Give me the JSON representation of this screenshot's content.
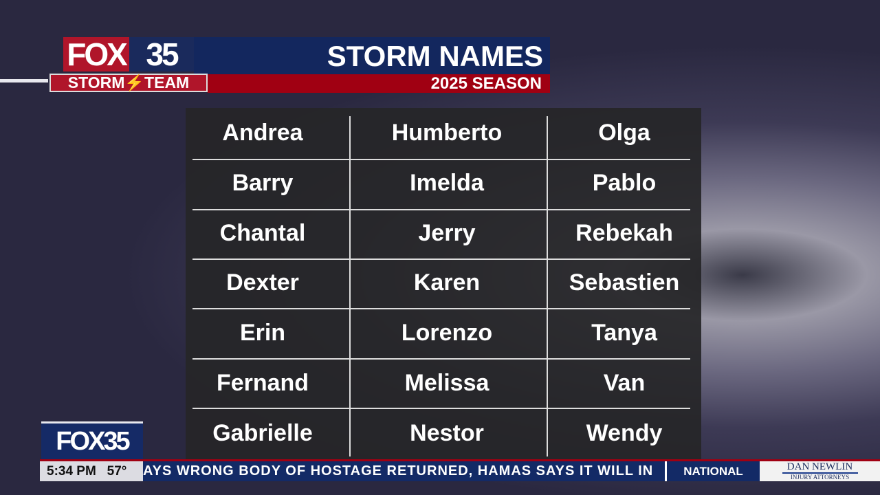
{
  "header": {
    "logo_fox": "FOX",
    "logo_num": "35",
    "team_label": "STORM⚡TEAM",
    "title": "STORM NAMES",
    "subtitle": "2025 SEASON"
  },
  "names": [
    [
      "Andrea",
      "Humberto",
      "Olga"
    ],
    [
      "Barry",
      "Imelda",
      "Pablo"
    ],
    [
      "Chantal",
      "Jerry",
      "Rebekah"
    ],
    [
      "Dexter",
      "Karen",
      "Sebastien"
    ],
    [
      "Erin",
      "Lorenzo",
      "Tanya"
    ],
    [
      "Fernand",
      "Melissa",
      "Van"
    ],
    [
      "Gabrielle",
      "Nestor",
      "Wendy"
    ]
  ],
  "ticker": {
    "bug": "FOX35",
    "time": "5:34 PM",
    "temp": "57°",
    "crawl": "AYS WRONG BODY OF HOSTAGE RETURNED, HAMAS SAYS IT WILL IN",
    "category": "NATIONAL",
    "sponsor": "DAN NEWLIN",
    "sponsor_sub": "INJURY ATTORNEYS"
  },
  "colors": {
    "red": "#b0152a",
    "navy": "#13275e"
  }
}
